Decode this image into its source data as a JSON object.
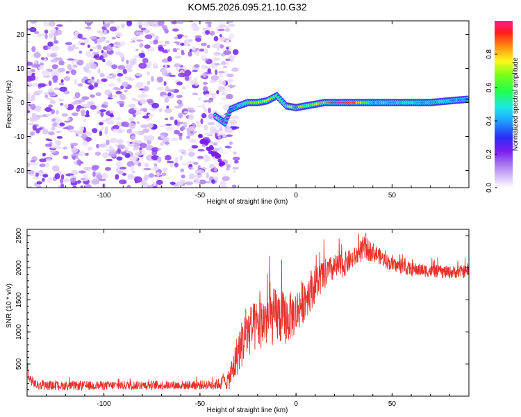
{
  "title": "KOM5.2026.095.21.10.G32",
  "chart_data": [
    {
      "type": "heatmap",
      "xlabel": "Height of straight line (km)",
      "ylabel": "Frequency (Hz)",
      "xlim": [
        -140,
        90
      ],
      "ylim": [
        -25,
        24
      ],
      "xticks": [
        -100,
        -50,
        0,
        50
      ],
      "yticks": [
        20,
        10,
        0,
        -10,
        -20
      ],
      "noise_region_x": [
        -140,
        -35
      ],
      "ridge": [
        {
          "x": -42,
          "f": -4,
          "amp": 0.15
        },
        {
          "x": -37,
          "f": -6,
          "amp": 0.15
        },
        {
          "x": -34,
          "f": -2,
          "amp": 0.3
        },
        {
          "x": -30,
          "f": -1,
          "amp": 0.45
        },
        {
          "x": -25,
          "f": 0,
          "amp": 0.55
        },
        {
          "x": -20,
          "f": 0,
          "amp": 0.7
        },
        {
          "x": -15,
          "f": 0.5,
          "amp": 0.75
        },
        {
          "x": -10,
          "f": 2,
          "amp": 0.6
        },
        {
          "x": -5,
          "f": -1,
          "amp": 0.55
        },
        {
          "x": 0,
          "f": -1.5,
          "amp": 0.9
        },
        {
          "x": 5,
          "f": -1,
          "amp": 0.6
        },
        {
          "x": 10,
          "f": -0.5,
          "amp": 0.7
        },
        {
          "x": 15,
          "f": 0,
          "amp": 0.8
        },
        {
          "x": 20,
          "f": 0,
          "amp": 1.0
        },
        {
          "x": 30,
          "f": 0,
          "amp": 0.9
        },
        {
          "x": 40,
          "f": 0,
          "amp": 0.4
        },
        {
          "x": 50,
          "f": 0,
          "amp": 0.45
        },
        {
          "x": 60,
          "f": 0,
          "amp": 0.45
        },
        {
          "x": 70,
          "f": 0,
          "amp": 0.4
        },
        {
          "x": 80,
          "f": 0.5,
          "amp": 0.45
        },
        {
          "x": 90,
          "f": 1,
          "amp": 0.3
        }
      ],
      "colorbar": {
        "label": "Normalized spectral amplitude",
        "range": [
          0,
          1
        ],
        "ticks": [
          "0.0",
          "0.2",
          "0.4",
          "0.6",
          "0.8"
        ]
      }
    },
    {
      "type": "line",
      "xlabel": "Height of straight line (km)",
      "ylabel": "SNR (10 * v/v)",
      "xlim": [
        -140,
        90
      ],
      "ylim": [
        0,
        2600
      ],
      "xticks": [
        -100,
        -50,
        0,
        50
      ],
      "yticks": [
        500,
        1000,
        1500,
        2000,
        2500
      ],
      "color": "#e8302a",
      "envelope": {
        "x": [
          -140,
          -139,
          -135,
          -120,
          -100,
          -80,
          -60,
          -45,
          -40,
          -35,
          -33,
          -30,
          -27,
          -25,
          -20,
          -15,
          -10,
          -5,
          0,
          5,
          10,
          15,
          20,
          25,
          30,
          35,
          40,
          45,
          50,
          60,
          70,
          80,
          90
        ],
        "y": [
          500,
          280,
          170,
          160,
          165,
          170,
          170,
          175,
          190,
          250,
          400,
          700,
          900,
          1000,
          1100,
          1200,
          1250,
          1200,
          1300,
          1550,
          1750,
          1900,
          2000,
          2050,
          2150,
          2300,
          2250,
          2150,
          2050,
          1980,
          1950,
          1930,
          1950
        ],
        "noise_amplitude": [
          120,
          90,
          70,
          70,
          70,
          70,
          70,
          75,
          90,
          150,
          250,
          350,
          400,
          400,
          400,
          450,
          450,
          400,
          350,
          350,
          300,
          250,
          200,
          200,
          150,
          200,
          150,
          120,
          110,
          110,
          100,
          100,
          100
        ]
      }
    }
  ]
}
